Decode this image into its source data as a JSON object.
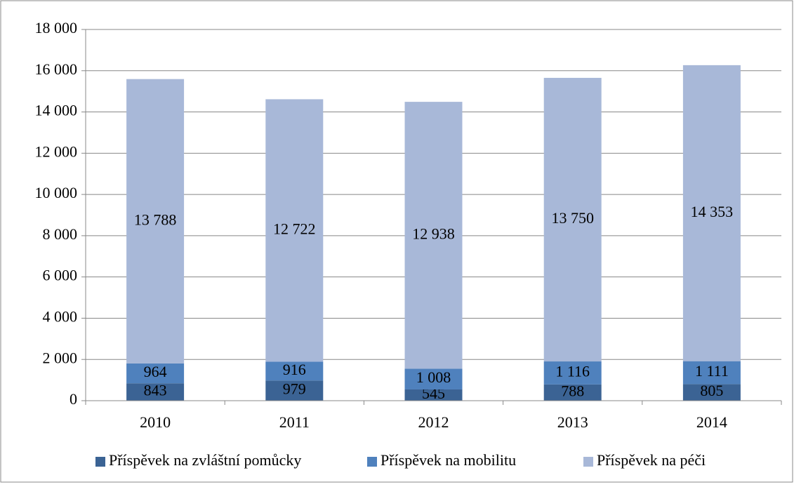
{
  "chart_data": {
    "type": "stacked_bar",
    "categories": [
      "2010",
      "2011",
      "2012",
      "2013",
      "2014"
    ],
    "series": [
      {
        "name": "Příspěvek na zvláštní pomůcky",
        "color": "#3b6394",
        "values": [
          843,
          979,
          545,
          788,
          805
        ],
        "value_labels": [
          "843",
          "979",
          "545",
          "788",
          "805"
        ]
      },
      {
        "name": "Příspěvek na mobilitu",
        "color": "#4f81bd",
        "values": [
          964,
          916,
          1008,
          1116,
          1111
        ],
        "value_labels": [
          "964",
          "916",
          "1 008",
          "1 116",
          "1 111"
        ]
      },
      {
        "name": "Příspěvek na péči",
        "color": "#a8b8d8",
        "values": [
          13788,
          12722,
          12938,
          13750,
          14353
        ],
        "value_labels": [
          "13 788",
          "12 722",
          "12 938",
          "13 750",
          "14 353"
        ]
      }
    ],
    "ylim": [
      0,
      18000
    ],
    "yticks": [
      {
        "value": 0,
        "label": "0"
      },
      {
        "value": 2000,
        "label": "2 000"
      },
      {
        "value": 4000,
        "label": "4 000"
      },
      {
        "value": 6000,
        "label": "6 000"
      },
      {
        "value": 8000,
        "label": "8 000"
      },
      {
        "value": 10000,
        "label": "10 000"
      },
      {
        "value": 12000,
        "label": "12 000"
      },
      {
        "value": 14000,
        "label": "14 000"
      },
      {
        "value": 16000,
        "label": "16 000"
      },
      {
        "value": 18000,
        "label": "18 000"
      }
    ],
    "grid": true,
    "legend": "bottom"
  }
}
